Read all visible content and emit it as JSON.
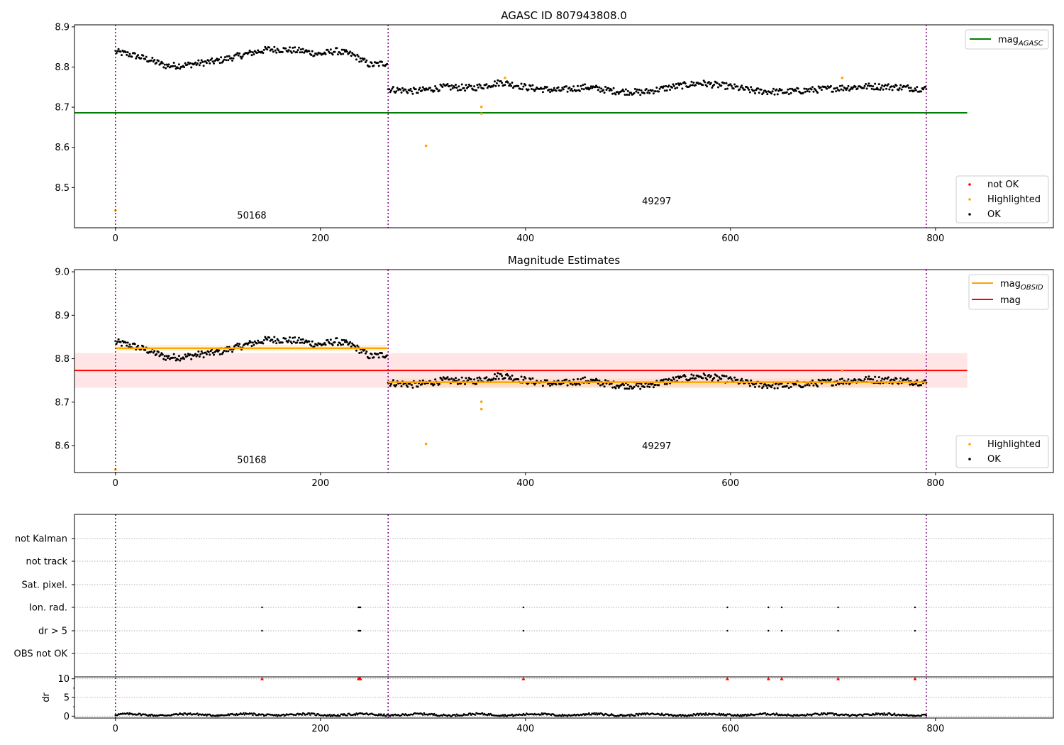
{
  "chart_data": [
    {
      "type": "scatter",
      "title": "AGASC ID 807943808.0",
      "xlim": [
        -40,
        915
      ],
      "ylim": [
        8.4,
        8.905
      ],
      "xticks": [
        0,
        200,
        400,
        600,
        800
      ],
      "yticks": [
        8.5,
        8.6,
        8.7,
        8.8,
        8.9
      ],
      "obsid_boundaries": [
        0,
        266,
        791
      ],
      "obsid_labels": [
        {
          "text": "50168",
          "x": 133,
          "y": 8.423
        },
        {
          "text": "49297",
          "x": 528,
          "y": 8.458
        }
      ],
      "reference_lines": [
        {
          "name": "mag_AGASC",
          "y": 8.686,
          "x": [
            -40,
            831
          ],
          "color": "#008000"
        }
      ],
      "segments": [
        {
          "x_range": [
            0,
            265
          ],
          "trend": [
            8.838,
            8.83,
            8.818,
            8.803,
            8.804,
            8.81,
            8.815,
            8.825,
            8.835,
            8.844,
            8.843,
            8.84,
            8.832,
            8.84,
            8.83,
            8.805,
            8.81
          ]
        },
        {
          "x_range": [
            266,
            791
          ],
          "trend": [
            8.745,
            8.74,
            8.75,
            8.748,
            8.762,
            8.748,
            8.742,
            8.75,
            8.74,
            8.737,
            8.75,
            8.76,
            8.752,
            8.74,
            8.738,
            8.743,
            8.748,
            8.752,
            8.75,
            8.745
          ]
        }
      ],
      "highlighted_points": [
        {
          "x": 0,
          "y": 8.443
        },
        {
          "x": 303,
          "y": 8.604
        },
        {
          "x": 357,
          "y": 8.701
        },
        {
          "x": 357,
          "y": 8.684
        },
        {
          "x": 380,
          "y": 8.773
        },
        {
          "x": 709,
          "y": 8.773
        }
      ],
      "legend_lines": [
        {
          "label": "mag",
          "subscript": "AGASC",
          "color": "#008000"
        }
      ],
      "legend_markers": [
        {
          "label": "not OK",
          "color": "#ff0000"
        },
        {
          "label": "Highlighted",
          "color": "#ffa500"
        },
        {
          "label": "OK",
          "color": "#000000"
        }
      ],
      "legend_lines_position": "top-right",
      "legend_markers_position": "lower-right"
    },
    {
      "type": "scatter",
      "title": "Magnitude Estimates",
      "xlim": [
        -40,
        915
      ],
      "ylim": [
        8.538,
        9.005
      ],
      "xticks": [
        0,
        200,
        400,
        600,
        800
      ],
      "yticks": [
        8.6,
        8.7,
        8.8,
        8.9,
        9.0
      ],
      "obsid_boundaries": [
        0,
        266,
        791
      ],
      "obsid_labels": [
        {
          "text": "50168",
          "x": 133,
          "y": 8.56
        },
        {
          "text": "49297",
          "x": 528,
          "y": 8.592
        }
      ],
      "reference_lines": [
        {
          "name": "mag",
          "y": 8.773,
          "x": [
            -40,
            831
          ],
          "color": "#ff0000",
          "band": [
            8.733,
            8.813
          ]
        }
      ],
      "obsid_means": [
        {
          "x_range": [
            0,
            265
          ],
          "y": 8.824,
          "band": [
            8.818,
            8.832
          ]
        },
        {
          "x_range": [
            266,
            791
          ],
          "y": 8.746,
          "band": [
            8.734,
            8.754
          ]
        }
      ],
      "segments": [
        {
          "x_range": [
            0,
            265
          ],
          "trend": [
            8.838,
            8.83,
            8.818,
            8.803,
            8.804,
            8.81,
            8.815,
            8.825,
            8.835,
            8.844,
            8.843,
            8.84,
            8.832,
            8.84,
            8.83,
            8.805,
            8.81
          ]
        },
        {
          "x_range": [
            266,
            791
          ],
          "trend": [
            8.745,
            8.74,
            8.75,
            8.748,
            8.762,
            8.748,
            8.742,
            8.75,
            8.74,
            8.737,
            8.75,
            8.76,
            8.752,
            8.74,
            8.738,
            8.743,
            8.748,
            8.752,
            8.75,
            8.745
          ]
        }
      ],
      "highlighted_points": [
        {
          "x": 0,
          "y": 8.545
        },
        {
          "x": 303,
          "y": 8.604
        },
        {
          "x": 357,
          "y": 8.701
        },
        {
          "x": 357,
          "y": 8.684
        },
        {
          "x": 380,
          "y": 8.773
        },
        {
          "x": 709,
          "y": 8.773
        }
      ],
      "legend_lines": [
        {
          "label": "mag",
          "subscript": "OBSID",
          "color": "#ffa500"
        },
        {
          "label": "mag",
          "subscript": "",
          "color": "#ff0000"
        }
      ],
      "legend_markers": [
        {
          "label": "Highlighted",
          "color": "#ffa500"
        },
        {
          "label": "OK",
          "color": "#000000"
        }
      ],
      "legend_lines_position": "top-right",
      "legend_markers_position": "lower-right"
    },
    {
      "type": "scatter",
      "title": "",
      "xlim": [
        -40,
        915
      ],
      "xticks": [
        0,
        200,
        400,
        600,
        800
      ],
      "obsid_boundaries": [
        0,
        266,
        791
      ],
      "flag_rows": [
        "not Kalman",
        "not track",
        "Sat. pixel.",
        "Ion. rad.",
        "dr > 5",
        "OBS not OK"
      ],
      "flag_points": {
        "Ion. rad.": [
          143,
          237,
          238,
          239,
          398,
          597,
          637,
          650,
          705,
          780
        ],
        "dr > 5": [
          143,
          237,
          238,
          239,
          398,
          597,
          637,
          650,
          705,
          780
        ]
      },
      "dr": {
        "ylabel": "dr",
        "ylim": [
          -0.5,
          10.5
        ],
        "yticks": [
          0,
          5,
          10
        ],
        "clipped_points": [
          143,
          237,
          238,
          239,
          398,
          597,
          637,
          650,
          705,
          780
        ],
        "clipped_value": 10,
        "typical_value": 0.4
      }
    }
  ]
}
